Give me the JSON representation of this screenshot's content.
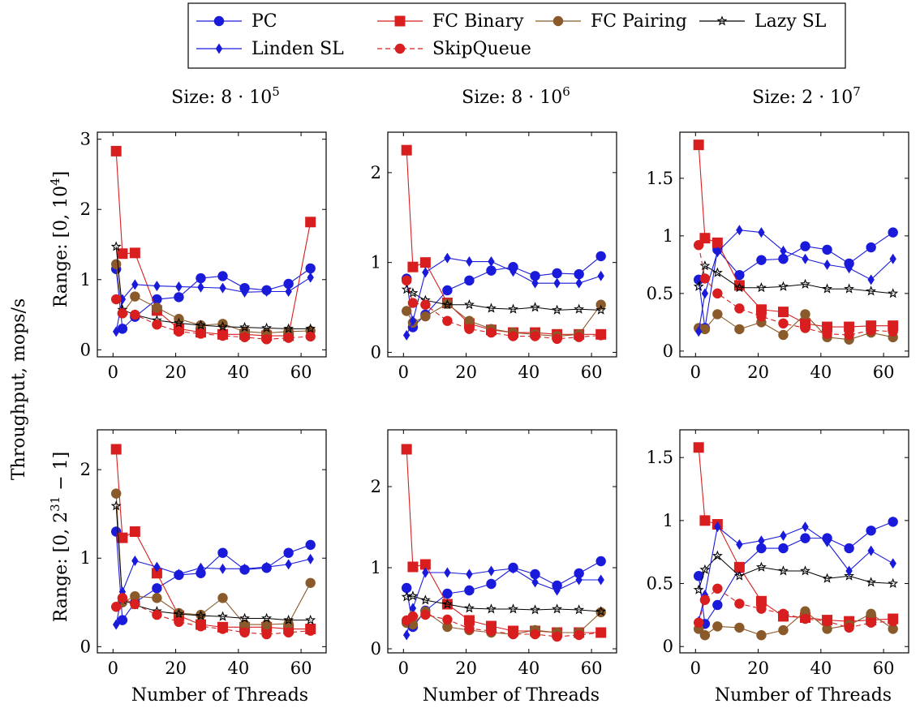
{
  "legend": {
    "entries": [
      {
        "label": "PC",
        "color": "#1a1adb",
        "marker": "circle",
        "dashed": false
      },
      {
        "label": "FC Binary",
        "color": "#d81e1e",
        "marker": "square",
        "dashed": false
      },
      {
        "label": "FC Pairing",
        "color": "#8b5a2b",
        "marker": "circle",
        "dashed": false
      },
      {
        "label": "Lazy SL",
        "color": "#000000",
        "marker": "star",
        "dashed": false
      },
      {
        "label": "Linden SL",
        "color": "#1a1adb",
        "marker": "diamond",
        "dashed": false
      },
      {
        "label": "SkipQueue",
        "color": "#d81e1e",
        "marker": "circle",
        "dashed": true
      }
    ]
  },
  "column_titles": [
    "Size: 8 · 10^5",
    "Size: 8 · 10^6",
    "Size: 2 · 10^7"
  ],
  "row_titles": [
    "Range: [0, 10^4]",
    "Range: [0, 2^31 − 1]"
  ],
  "y_axis_label": "Throughput, mops/s",
  "x_axis_label": "Number of Threads",
  "chart_data": [
    {
      "type": "line",
      "row": 0,
      "col": 0,
      "x": [
        1,
        3,
        7,
        14,
        21,
        28,
        35,
        42,
        49,
        56,
        63
      ],
      "xlim": [
        -5,
        68
      ],
      "ylim": [
        -0.1,
        3.1
      ],
      "xticks": [
        0,
        20,
        40,
        60
      ],
      "yticks": [
        0,
        1,
        2,
        3
      ],
      "ytick_labels": [
        "0",
        "1",
        "2",
        "3"
      ],
      "grid": false,
      "series": [
        {
          "name": "PC",
          "values": [
            1.15,
            0.3,
            0.47,
            0.72,
            0.75,
            1.02,
            1.05,
            0.88,
            0.85,
            0.94,
            1.16
          ]
        },
        {
          "name": "FC Binary",
          "values": [
            2.83,
            1.37,
            1.38,
            0.56,
            0.3,
            0.25,
            0.22,
            0.22,
            0.2,
            0.2,
            1.82
          ]
        },
        {
          "name": "FC Pairing",
          "values": [
            1.22,
            0.52,
            0.76,
            0.6,
            0.44,
            0.35,
            0.37,
            0.26,
            0.24,
            0.26,
            0.27
          ]
        },
        {
          "name": "Lazy SL",
          "values": [
            1.47,
            0.57,
            0.5,
            0.42,
            0.38,
            0.35,
            0.33,
            0.32,
            0.31,
            0.3,
            0.3
          ]
        },
        {
          "name": "Linden SL",
          "values": [
            0.26,
            0.72,
            0.93,
            0.91,
            0.9,
            0.89,
            0.88,
            0.82,
            0.83,
            0.83,
            1.03
          ]
        },
        {
          "name": "SkipQueue",
          "values": [
            0.72,
            0.52,
            0.5,
            0.36,
            0.26,
            0.23,
            0.2,
            0.18,
            0.15,
            0.17,
            0.19
          ]
        }
      ]
    },
    {
      "type": "line",
      "row": 0,
      "col": 1,
      "x": [
        1,
        3,
        7,
        14,
        21,
        28,
        35,
        42,
        49,
        56,
        63
      ],
      "xlim": [
        -5,
        68
      ],
      "ylim": [
        -0.05,
        2.45
      ],
      "xticks": [
        0,
        20,
        40,
        60
      ],
      "yticks": [
        0,
        1,
        2
      ],
      "ytick_labels": [
        "0",
        "1",
        "2"
      ],
      "grid": false,
      "series": [
        {
          "name": "PC",
          "values": [
            0.82,
            0.28,
            0.42,
            0.69,
            0.8,
            0.91,
            0.95,
            0.85,
            0.88,
            0.87,
            1.07
          ]
        },
        {
          "name": "FC Binary",
          "values": [
            2.25,
            0.95,
            1.0,
            0.55,
            0.32,
            0.25,
            0.22,
            0.22,
            0.2,
            0.2,
            0.2
          ]
        },
        {
          "name": "FC Pairing",
          "values": [
            0.46,
            0.33,
            0.4,
            0.54,
            0.35,
            0.26,
            0.22,
            0.2,
            0.18,
            0.2,
            0.53
          ]
        },
        {
          "name": "Lazy SL",
          "values": [
            0.7,
            0.66,
            0.58,
            0.53,
            0.53,
            0.49,
            0.48,
            0.5,
            0.47,
            0.48,
            0.47
          ]
        },
        {
          "name": "Linden SL",
          "values": [
            0.19,
            0.35,
            0.89,
            1.05,
            1.01,
            1.01,
            0.9,
            0.77,
            0.77,
            0.77,
            0.85
          ]
        },
        {
          "name": "SkipQueue",
          "values": [
            0.8,
            0.55,
            0.53,
            0.35,
            0.26,
            0.22,
            0.18,
            0.18,
            0.15,
            0.17,
            0.19
          ]
        }
      ]
    },
    {
      "type": "line",
      "row": 0,
      "col": 2,
      "x": [
        1,
        3,
        7,
        14,
        21,
        28,
        35,
        42,
        49,
        56,
        63
      ],
      "xlim": [
        -5,
        68
      ],
      "ylim": [
        -0.05,
        1.9
      ],
      "xticks": [
        0,
        20,
        40,
        60
      ],
      "yticks": [
        0,
        0.5,
        1,
        1.5
      ],
      "ytick_labels": [
        "0",
        "0.5",
        "1",
        "1.5"
      ],
      "grid": false,
      "series": [
        {
          "name": "PC",
          "values": [
            0.62,
            0.2,
            0.88,
            0.66,
            0.79,
            0.8,
            0.91,
            0.88,
            0.76,
            0.9,
            1.03
          ]
        },
        {
          "name": "FC Binary",
          "values": [
            1.79,
            0.98,
            0.94,
            0.57,
            0.36,
            0.34,
            0.24,
            0.21,
            0.21,
            0.22,
            0.22
          ]
        },
        {
          "name": "FC Pairing",
          "values": [
            0.2,
            0.19,
            0.32,
            0.19,
            0.25,
            0.14,
            0.32,
            0.12,
            0.1,
            0.16,
            0.12
          ]
        },
        {
          "name": "Lazy SL",
          "values": [
            0.56,
            0.74,
            0.68,
            0.55,
            0.55,
            0.56,
            0.58,
            0.54,
            0.54,
            0.52,
            0.5
          ]
        },
        {
          "name": "Linden SL",
          "values": [
            0.17,
            0.5,
            0.86,
            1.05,
            1.03,
            0.87,
            0.8,
            0.75,
            0.72,
            0.62,
            0.8
          ]
        },
        {
          "name": "SkipQueue",
          "values": [
            0.92,
            0.63,
            0.5,
            0.37,
            0.3,
            0.24,
            0.2,
            0.15,
            0.14,
            0.18,
            0.17
          ]
        }
      ]
    },
    {
      "type": "line",
      "row": 1,
      "col": 0,
      "x": [
        1,
        3,
        7,
        14,
        21,
        28,
        35,
        42,
        49,
        56,
        63
      ],
      "xlim": [
        -5,
        68
      ],
      "ylim": [
        -0.07,
        2.45
      ],
      "xticks": [
        0,
        20,
        40,
        60
      ],
      "yticks": [
        0,
        1,
        2
      ],
      "ytick_labels": [
        "0",
        "1",
        "2"
      ],
      "grid": false,
      "series": [
        {
          "name": "PC",
          "values": [
            1.3,
            0.3,
            0.5,
            0.66,
            0.81,
            0.83,
            1.06,
            0.87,
            0.89,
            1.06,
            1.15
          ]
        },
        {
          "name": "FC Binary",
          "values": [
            2.23,
            1.23,
            1.3,
            0.83,
            0.35,
            0.25,
            0.22,
            0.22,
            0.22,
            0.2,
            0.2
          ]
        },
        {
          "name": "FC Pairing",
          "values": [
            1.73,
            0.5,
            0.57,
            0.55,
            0.38,
            0.36,
            0.55,
            0.25,
            0.25,
            0.26,
            0.72
          ]
        },
        {
          "name": "Lazy SL",
          "values": [
            1.59,
            0.53,
            0.47,
            0.4,
            0.37,
            0.35,
            0.34,
            0.32,
            0.32,
            0.3,
            0.3
          ]
        },
        {
          "name": "Linden SL",
          "values": [
            0.25,
            0.62,
            0.97,
            0.9,
            0.82,
            0.89,
            0.88,
            0.88,
            0.9,
            0.93,
            0.99
          ]
        },
        {
          "name": "SkipQueue",
          "values": [
            0.45,
            0.55,
            0.48,
            0.36,
            0.28,
            0.23,
            0.2,
            0.16,
            0.14,
            0.16,
            0.18
          ]
        }
      ]
    },
    {
      "type": "line",
      "row": 1,
      "col": 1,
      "x": [
        1,
        3,
        7,
        14,
        21,
        28,
        35,
        42,
        49,
        56,
        63
      ],
      "xlim": [
        -5,
        68
      ],
      "ylim": [
        -0.05,
        2.7
      ],
      "xticks": [
        0,
        20,
        40,
        60
      ],
      "yticks": [
        0,
        1,
        2
      ],
      "ytick_labels": [
        "0",
        "1",
        "2"
      ],
      "grid": false,
      "series": [
        {
          "name": "PC",
          "values": [
            0.75,
            0.27,
            0.47,
            0.68,
            0.72,
            0.8,
            1.0,
            0.92,
            0.78,
            0.93,
            1.08
          ]
        },
        {
          "name": "FC Binary",
          "values": [
            2.46,
            1.01,
            1.04,
            0.55,
            0.35,
            0.28,
            0.22,
            0.22,
            0.2,
            0.2,
            0.2
          ]
        },
        {
          "name": "FC Pairing",
          "values": [
            0.32,
            0.3,
            0.46,
            0.27,
            0.23,
            0.2,
            0.18,
            0.23,
            0.2,
            0.2,
            0.45
          ]
        },
        {
          "name": "Lazy SL",
          "values": [
            0.64,
            0.65,
            0.6,
            0.55,
            0.5,
            0.49,
            0.49,
            0.48,
            0.49,
            0.48,
            0.46
          ]
        },
        {
          "name": "Linden SL",
          "values": [
            0.17,
            0.5,
            0.94,
            0.94,
            0.92,
            0.96,
            0.99,
            0.82,
            0.72,
            0.85,
            0.85
          ]
        },
        {
          "name": "SkipQueue",
          "values": [
            0.35,
            0.4,
            0.42,
            0.36,
            0.25,
            0.22,
            0.18,
            0.18,
            0.15,
            0.17,
            0.2
          ]
        }
      ]
    },
    {
      "type": "line",
      "row": 1,
      "col": 2,
      "x": [
        1,
        3,
        7,
        14,
        21,
        28,
        35,
        42,
        49,
        56,
        63
      ],
      "xlim": [
        -5,
        68
      ],
      "ylim": [
        -0.05,
        1.72
      ],
      "xticks": [
        0,
        20,
        40,
        60
      ],
      "yticks": [
        0,
        0.5,
        1,
        1.5
      ],
      "ytick_labels": [
        "0",
        "0.5",
        "1",
        "1.5"
      ],
      "grid": false,
      "series": [
        {
          "name": "PC",
          "values": [
            0.56,
            0.18,
            0.33,
            0.62,
            0.78,
            0.78,
            0.86,
            0.86,
            0.78,
            0.92,
            0.99
          ]
        },
        {
          "name": "FC Binary",
          "values": [
            1.58,
            1.0,
            0.97,
            0.63,
            0.36,
            0.24,
            0.23,
            0.21,
            0.2,
            0.21,
            0.22
          ]
        },
        {
          "name": "FC Pairing",
          "values": [
            0.14,
            0.09,
            0.16,
            0.15,
            0.09,
            0.13,
            0.28,
            0.14,
            0.17,
            0.26,
            0.14
          ]
        },
        {
          "name": "Lazy SL",
          "values": [
            0.45,
            0.61,
            0.72,
            0.56,
            0.63,
            0.6,
            0.6,
            0.54,
            0.56,
            0.51,
            0.5
          ]
        },
        {
          "name": "Linden SL",
          "values": [
            0.2,
            0.41,
            0.95,
            0.81,
            0.84,
            0.88,
            0.95,
            0.83,
            0.6,
            0.76,
            0.66
          ]
        },
        {
          "name": "SkipQueue",
          "values": [
            0.19,
            0.37,
            0.46,
            0.34,
            0.3,
            0.26,
            0.22,
            0.2,
            0.15,
            0.19,
            0.2
          ]
        }
      ]
    }
  ]
}
